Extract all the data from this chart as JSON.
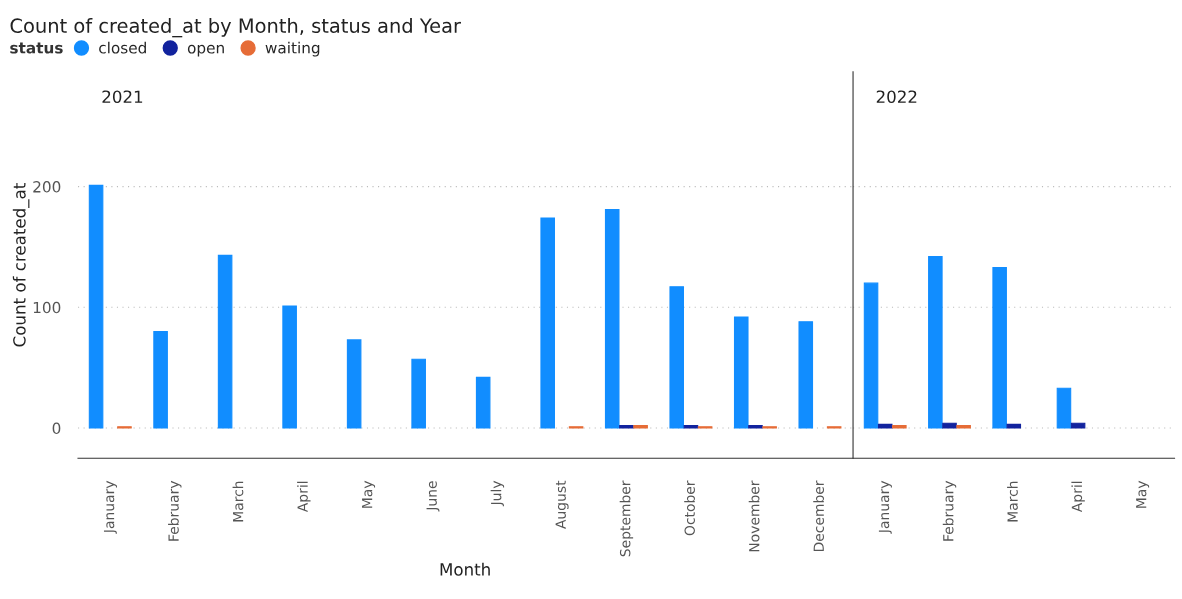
{
  "chart_data": [
    {
      "type": "bar",
      "title": "Count of created_at by Month, status and Year",
      "subtitle": "2021",
      "xlabel": "Month",
      "ylabel": "Count of created_at",
      "legend_title": "status",
      "categories": [
        "January",
        "February",
        "March",
        "April",
        "May",
        "June",
        "July",
        "August",
        "September",
        "October",
        "November",
        "December"
      ],
      "series": [
        {
          "name": "closed",
          "color": "#118dff",
          "values": [
            201,
            80,
            143,
            101,
            73,
            57,
            42,
            174,
            181,
            117,
            92,
            88
          ]
        },
        {
          "name": "open",
          "color": "#12239e",
          "values": [
            null,
            null,
            null,
            null,
            null,
            null,
            null,
            null,
            2,
            2,
            2,
            null
          ]
        },
        {
          "name": "waiting",
          "color": "#e66c37",
          "values": [
            1,
            null,
            null,
            null,
            null,
            null,
            null,
            1,
            2,
            1,
            1,
            1
          ]
        }
      ],
      "ylim": [
        -25,
        295
      ],
      "yticks": [
        0,
        100,
        200
      ],
      "grid": "y",
      "legend": "top left"
    },
    {
      "type": "bar",
      "subtitle": "2022",
      "categories": [
        "January",
        "February",
        "March",
        "April",
        "May"
      ],
      "series": [
        {
          "color": "#118dff",
          "values": [
            120,
            142,
            133,
            33,
            null
          ]
        },
        {
          "color": "#12239e",
          "values": [
            3,
            4,
            3,
            4,
            null
          ]
        },
        {
          "color": "#e66c37",
          "values": [
            2,
            2,
            null,
            null,
            null
          ]
        }
      ],
      "ylim": [
        -25,
        295
      ],
      "yticks": [
        0,
        100,
        200
      ],
      "grid": "y",
      "tick_labels": "x"
    }
  ]
}
